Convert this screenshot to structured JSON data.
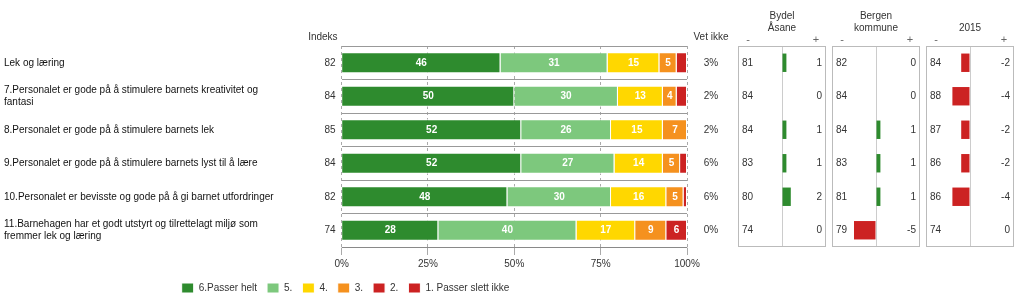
{
  "chart_data": [
    {
      "type": "bar",
      "orientation": "horizontal",
      "stacked": true,
      "categories": [
        "Lek og læring",
        "7.Personalet er gode på å stimulere barnets kreativitet og\nfantasi",
        "8.Personalet er gode på å stimulere barnets lek",
        "9.Personalet er gode på å stimulere barnets lyst til å lære",
        "10.Personalet er bevisste og gode på å gi barnet utfordringer",
        "11.Barnehagen har et godt utstyrt og tilrettelagt miljø som\nfremmer lek og læring"
      ],
      "series": [
        {
          "name": "6.Passer helt",
          "color": "#2e8b2e",
          "values": [
            46,
            50,
            52,
            52,
            48,
            28
          ]
        },
        {
          "name": "5.",
          "color": "#7dc87d",
          "values": [
            31,
            30,
            26,
            27,
            30,
            40
          ]
        },
        {
          "name": "4.",
          "color": "#ffd700",
          "values": [
            15,
            13,
            15,
            14,
            16,
            17
          ]
        },
        {
          "name": "3.",
          "color": "#f5911e",
          "values": [
            5,
            4,
            7,
            5,
            5,
            9
          ]
        },
        {
          "name": "2.",
          "color": "#cc2222",
          "values": [
            3,
            3,
            0,
            2,
            1,
            6
          ],
          "value_labels": [
            null,
            null,
            null,
            null,
            null,
            "6"
          ]
        },
        {
          "name": "1. Passer slett ikke",
          "color": "#cc2222",
          "values": [
            null,
            null,
            null,
            null,
            null,
            null
          ]
        }
      ],
      "xlim": [
        0,
        100
      ],
      "xticks": [
        {
          "value": 0,
          "label": "0%"
        },
        {
          "value": 25,
          "label": "25%"
        },
        {
          "value": 50,
          "label": "50%"
        },
        {
          "value": 75,
          "label": "75%"
        },
        {
          "value": 100,
          "label": "100%"
        }
      ],
      "grid": true,
      "legend": "bottom",
      "data_labels": true,
      "index_title": "Indeks",
      "index": [
        82,
        84,
        85,
        84,
        82,
        74
      ],
      "vet_ikke_title": "Vet ikke",
      "vet_ikke": [
        "3%",
        "2%",
        "2%",
        "6%",
        "6%",
        "0%"
      ]
    },
    {
      "type": "bar",
      "orientation": "horizontal",
      "title": "Bydel\nÅsane",
      "categories": [
        null,
        null,
        null,
        null,
        null,
        null
      ],
      "values": [
        1,
        0,
        1,
        1,
        2,
        0
      ],
      "colors": [
        "#2e8b2e",
        null,
        "#2e8b2e",
        "#2e8b2e",
        "#2e8b2e",
        null
      ],
      "index": [
        81,
        84,
        84,
        83,
        80,
        74
      ],
      "xlim": [
        -10,
        10
      ],
      "xticks": [
        0
      ],
      "grid": true,
      "tick_labels": false,
      "data_labels": true,
      "annotations": [
        "-",
        "+"
      ]
    },
    {
      "type": "bar",
      "orientation": "horizontal",
      "title": "Bergen\nkommune",
      "categories": [
        null,
        null,
        null,
        null,
        null,
        null
      ],
      "values": [
        0,
        0,
        1,
        1,
        1,
        -5
      ],
      "colors": [
        null,
        null,
        "#2e8b2e",
        "#2e8b2e",
        "#2e8b2e",
        "#cc2222"
      ],
      "index": [
        82,
        84,
        84,
        83,
        81,
        79
      ],
      "xlim": [
        -10,
        10
      ],
      "xticks": [
        0
      ],
      "grid": true,
      "tick_labels": false,
      "data_labels": true,
      "annotations": [
        "-",
        "+"
      ]
    },
    {
      "type": "bar",
      "orientation": "horizontal",
      "title": "2015",
      "categories": [
        null,
        null,
        null,
        null,
        null,
        null
      ],
      "values": [
        -2,
        -4,
        -2,
        -2,
        -4,
        0
      ],
      "colors": [
        "#cc2222",
        "#cc2222",
        "#cc2222",
        "#cc2222",
        "#cc2222",
        null
      ],
      "index": [
        84,
        88,
        87,
        86,
        86,
        74
      ],
      "xlim": [
        -10,
        10
      ],
      "xticks": [
        0
      ],
      "grid": true,
      "tick_labels": false,
      "data_labels": true,
      "annotations": [
        "-",
        "+"
      ]
    }
  ]
}
